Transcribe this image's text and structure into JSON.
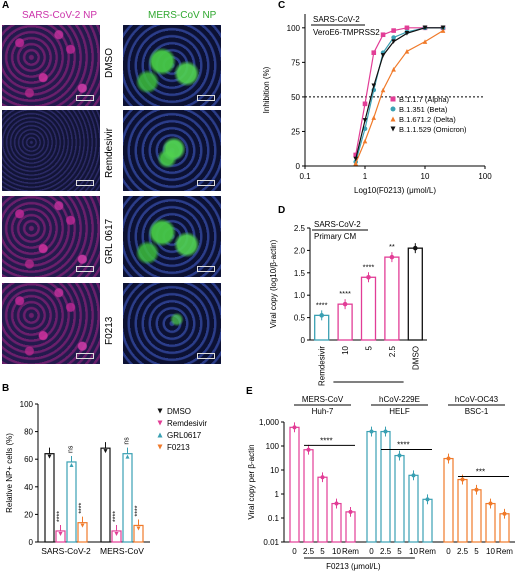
{
  "panels": {
    "A": {
      "label": "A",
      "col_titles": [
        "SARS-CoV-2 NP",
        "MERS-CoV NP"
      ],
      "col_title_colors": [
        "#cc33aa",
        "#2fa82f"
      ],
      "row_labels": [
        "DMSO",
        "Remdesivir",
        "GRL 0617",
        "F0213"
      ]
    },
    "B": {
      "label": "B"
    },
    "C": {
      "label": "C"
    },
    "D": {
      "label": "D"
    },
    "E": {
      "label": "E"
    }
  },
  "chart_data": [
    {
      "panel": "C",
      "type": "line",
      "title": "SARS-CoV-2",
      "subtitle": "VeroE6-TMPRSS2",
      "xlabel": "Log10(F0213) (μmol/L)",
      "ylabel": "Inhibition (%)",
      "xscale": "log",
      "xlim": [
        0.1,
        100
      ],
      "ylim": [
        0,
        110
      ],
      "xticks": [
        "0.1",
        "1",
        "10",
        "100"
      ],
      "yticks": [
        "0",
        "25",
        "50",
        "75",
        "100"
      ],
      "reference_line_y": 50,
      "legend_position": "bottom-right",
      "series": [
        {
          "name": "B.1.1.7 (Alpha)",
          "color": "#e23d96",
          "marker": "square",
          "x": [
            0.7,
            1.0,
            1.4,
            2.0,
            3.0,
            5.0,
            10,
            20
          ],
          "y": [
            8,
            45,
            82,
            95,
            98,
            100,
            100,
            100
          ]
        },
        {
          "name": "B.1.351 (Beta)",
          "color": "#3aa0b3",
          "marker": "circle",
          "x": [
            0.7,
            1.0,
            1.4,
            2.0,
            3.0,
            5.0,
            10,
            20
          ],
          "y": [
            3,
            27,
            55,
            82,
            93,
            97,
            100,
            100
          ]
        },
        {
          "name": "B.1.671.2 (Delta)",
          "color": "#f07a2a",
          "marker": "triangle-up",
          "x": [
            0.7,
            1.0,
            1.4,
            2.0,
            3.0,
            5.0,
            10,
            20
          ],
          "y": [
            2,
            18,
            35,
            55,
            70,
            83,
            90,
            98
          ]
        },
        {
          "name": "B.1.1.529 (Omicron)",
          "color": "#111111",
          "marker": "triangle-down",
          "x": [
            0.7,
            1.0,
            1.4,
            2.0,
            3.0,
            5.0,
            10,
            20
          ],
          "y": [
            5,
            33,
            58,
            80,
            90,
            96,
            100,
            100
          ]
        }
      ]
    },
    {
      "panel": "B",
      "type": "bar",
      "ylabel": "Relative NP+ cells (%)",
      "ylim": [
        0,
        100
      ],
      "yticks": [
        "0",
        "20",
        "40",
        "60",
        "80",
        "100"
      ],
      "categories": [
        "SARS-CoV-2",
        "MERS-CoV"
      ],
      "legend_position": "right",
      "series": [
        {
          "name": "DMSO",
          "color": "#111111",
          "marker": "triangle-down",
          "values": [
            64,
            68
          ]
        },
        {
          "name": "Remdesivir",
          "color": "#e23d96",
          "marker": "triangle-down",
          "values": [
            8,
            8
          ]
        },
        {
          "name": "GRL0617",
          "color": "#3aa0b3",
          "marker": "triangle-up",
          "values": [
            58,
            64
          ]
        },
        {
          "name": "F0213",
          "color": "#f07a2a",
          "marker": "triangle-down",
          "values": [
            14,
            12
          ]
        }
      ],
      "annotations": [
        [
          "",
          "****",
          "ns",
          "****"
        ],
        [
          "",
          "****",
          "ns",
          "****"
        ]
      ]
    },
    {
      "panel": "D",
      "type": "bar",
      "title": "SARS-CoV-2",
      "subtitle": "Primary CM",
      "ylabel": "Viral copy (log10/β-actin)",
      "xlabel": "F0213 (μmol/L)",
      "ylim": [
        0,
        2.5
      ],
      "yticks": [
        "0",
        "0.5",
        "1.0",
        "1.5",
        "2.0",
        "2.5"
      ],
      "categories": [
        "Remdesivir",
        "10",
        "5",
        "2.5",
        "DMSO"
      ],
      "values": [
        0.55,
        0.8,
        1.4,
        1.85,
        2.05
      ],
      "colors": [
        "#3aa0b3",
        "#e23d96",
        "#e23d96",
        "#e23d96",
        "#111111"
      ],
      "annotations": [
        "****",
        "****",
        "****",
        "**",
        ""
      ]
    },
    {
      "panel": "E",
      "type": "bar",
      "ylabel": "Viral copy per β-actin",
      "xlabel": "F0213 (μmol/L)",
      "yscale": "log",
      "ylim": [
        0.01,
        1000
      ],
      "yticks": [
        "0.01",
        "0.1",
        "1",
        "10",
        "100",
        "1,000"
      ],
      "groups": [
        {
          "title": "MERS-CoV",
          "subtitle": "Huh-7",
          "color": "#e23d96",
          "categories": [
            "0",
            "2.5",
            "5",
            "10",
            "Rem"
          ],
          "values": [
            600,
            70,
            5,
            0.4,
            0.18
          ],
          "significance": "****"
        },
        {
          "title": "hCoV-229E",
          "subtitle": "HELF",
          "color": "#3aa0b3",
          "categories": [
            "0",
            "2.5",
            "5",
            "10",
            "Rem"
          ],
          "values": [
            400,
            400,
            40,
            6,
            0.6
          ],
          "significance": "****"
        },
        {
          "title": "hCoV-OC43",
          "subtitle": "BSC-1",
          "color": "#f07a2a",
          "categories": [
            "0",
            "2.5",
            "5",
            "10",
            "Rem"
          ],
          "values": [
            30,
            4,
            1.5,
            0.4,
            0.15
          ],
          "significance": "***"
        }
      ]
    }
  ]
}
